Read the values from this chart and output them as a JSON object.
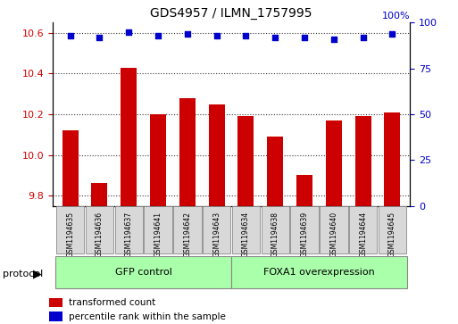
{
  "title": "GDS4957 / ILMN_1757995",
  "samples": [
    "GSM1194635",
    "GSM1194636",
    "GSM1194637",
    "GSM1194641",
    "GSM1194642",
    "GSM1194643",
    "GSM1194634",
    "GSM1194638",
    "GSM1194639",
    "GSM1194640",
    "GSM1194644",
    "GSM1194645"
  ],
  "transformed_counts": [
    10.12,
    9.86,
    10.43,
    10.2,
    10.28,
    10.25,
    10.19,
    10.09,
    9.9,
    10.17,
    10.19,
    10.21
  ],
  "percentile_ranks": [
    93,
    92,
    95,
    93,
    94,
    93,
    93,
    92,
    92,
    91,
    92,
    94
  ],
  "bar_color": "#cc0000",
  "dot_color": "#0000cc",
  "ylim_left": [
    9.75,
    10.65
  ],
  "ylim_right": [
    0,
    100
  ],
  "yticks_left": [
    9.8,
    10.0,
    10.2,
    10.4,
    10.6
  ],
  "yticks_right": [
    0,
    25,
    50,
    75,
    100
  ],
  "group1_label": "GFP control",
  "group2_label": "FOXA1 overexpression",
  "group1_count": 6,
  "group2_count": 6,
  "protocol_label": "protocol",
  "legend_bar_label": "transformed count",
  "legend_dot_label": "percentile rank within the sample",
  "group_box_color": "#aaffaa",
  "sample_box_color": "#d8d8d8"
}
